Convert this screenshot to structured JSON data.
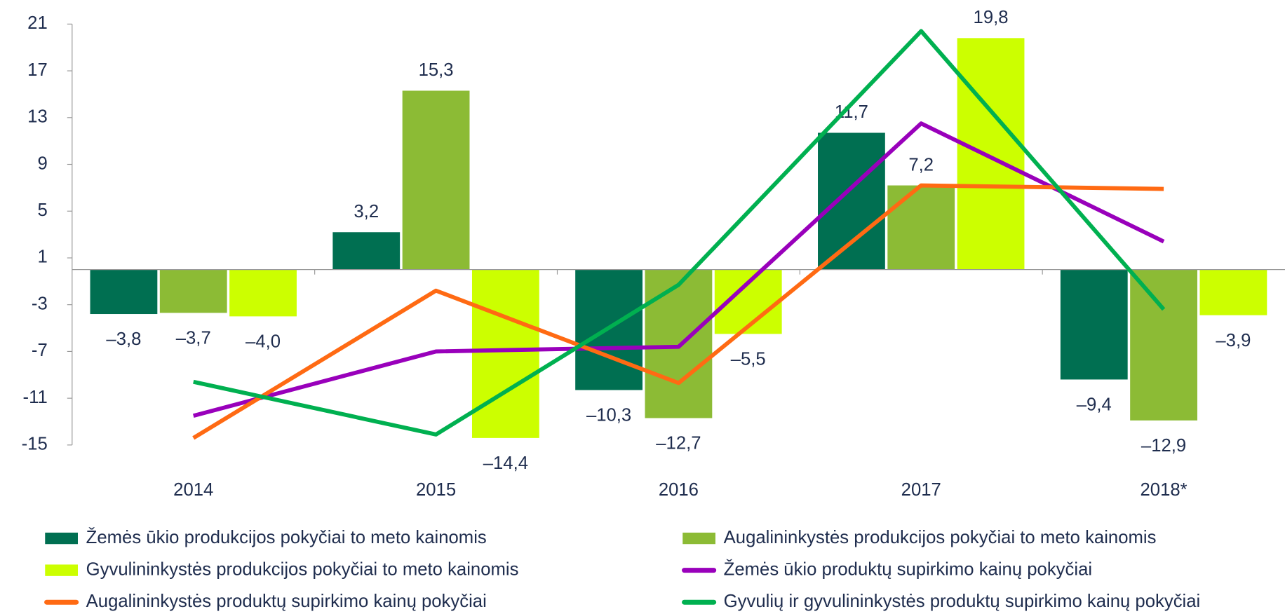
{
  "chart_data": {
    "type": "bar",
    "categories": [
      "2014",
      "2015",
      "2016",
      "2017",
      "2018*"
    ],
    "ylim": [
      -15,
      21
    ],
    "yticks": [
      -15,
      -11,
      -7,
      -3,
      1,
      5,
      9,
      13,
      17,
      21
    ],
    "series": [
      {
        "name": "Žemės ūkio produkcijos pokyčiai to meto kainomis",
        "type": "bar",
        "color": "#006f51",
        "values": [
          -3.8,
          3.2,
          -10.3,
          11.7,
          -9.4
        ],
        "value_labels": [
          "–3,8",
          "3,2",
          "–10,3",
          "11,7",
          "–9,4"
        ]
      },
      {
        "name": "Augalininkystės produkcijos pokyčiai to meto kainomis",
        "type": "bar",
        "color": "#8cbb35",
        "values": [
          -3.7,
          15.3,
          -12.7,
          7.2,
          -12.9
        ],
        "value_labels": [
          "–3,7",
          "15,3",
          "–12,7",
          "7,2",
          "–12,9"
        ]
      },
      {
        "name": "Gyvulininkystės produkcijos pokyčiai to meto kainomis",
        "type": "bar",
        "color": "#ccff00",
        "values": [
          -4.0,
          -14.4,
          -5.5,
          19.8,
          -3.9
        ],
        "value_labels": [
          "–4,0",
          "–14,4",
          "–5,5",
          "19,8",
          "–3,9"
        ]
      },
      {
        "name": "Žemės ūkio produktų supirkimo kainų pokyčiai",
        "type": "line",
        "color": "#9900bb",
        "values": [
          -12.5,
          -7.0,
          -6.6,
          12.5,
          2.4
        ]
      },
      {
        "name": "Augalininkystės produktų supirkimo kainų pokyčiai",
        "type": "line",
        "color": "#ff6a13",
        "values": [
          -14.4,
          -1.8,
          -9.7,
          7.2,
          6.9
        ]
      },
      {
        "name": "Gyvulių ir gyvulininkystės produktų supirkimo kainų pokyčiai",
        "type": "line",
        "color": "#00b050",
        "values": [
          -9.6,
          -14.1,
          -1.3,
          20.4,
          -3.4
        ]
      }
    ]
  }
}
